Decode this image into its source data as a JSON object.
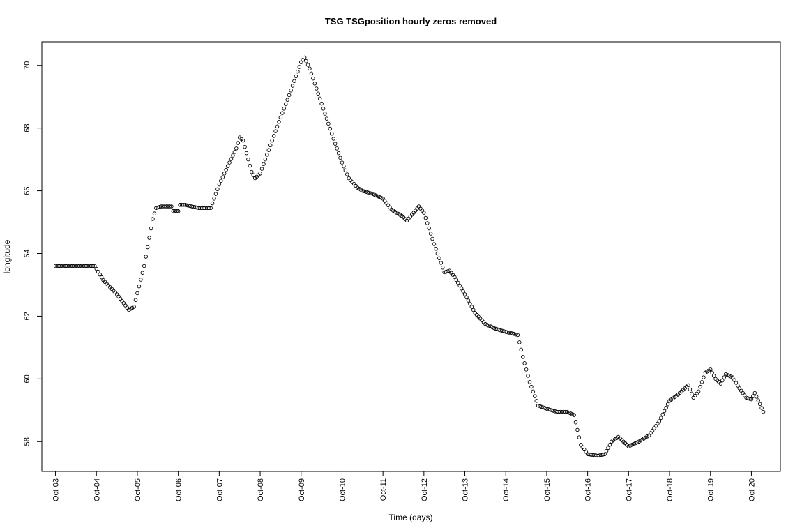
{
  "chart_data": {
    "type": "scatter",
    "title": "TSG TSGposition hourly zeros removed",
    "xlabel": "Time (days)",
    "ylabel": "longitude",
    "xlim": [
      "2023-10-02T16:00",
      "2023-10-20T17:00"
    ],
    "ylim": [
      57.05,
      70.75
    ],
    "x_ticks": [
      {
        "value": "2023-10-03",
        "label": "Oct-03"
      },
      {
        "value": "2023-10-04",
        "label": "Oct-04"
      },
      {
        "value": "2023-10-05",
        "label": "Oct-05"
      },
      {
        "value": "2023-10-06",
        "label": "Oct-06"
      },
      {
        "value": "2023-10-07",
        "label": "Oct-07"
      },
      {
        "value": "2023-10-08",
        "label": "Oct-08"
      },
      {
        "value": "2023-10-09",
        "label": "Oct-09"
      },
      {
        "value": "2023-10-10",
        "label": "Oct-10"
      },
      {
        "value": "2023-10-11",
        "label": "Oct-11"
      },
      {
        "value": "2023-10-12",
        "label": "Oct-12"
      },
      {
        "value": "2023-10-13",
        "label": "Oct-13"
      },
      {
        "value": "2023-10-14",
        "label": "Oct-14"
      },
      {
        "value": "2023-10-15",
        "label": "Oct-15"
      },
      {
        "value": "2023-10-16",
        "label": "Oct-16"
      },
      {
        "value": "2023-10-17",
        "label": "Oct-17"
      },
      {
        "value": "2023-10-18",
        "label": "Oct-18"
      },
      {
        "value": "2023-10-19",
        "label": "Oct-19"
      },
      {
        "value": "2023-10-20",
        "label": "Oct-20"
      }
    ],
    "y_ticks": [
      58,
      60,
      62,
      64,
      66,
      68,
      70
    ],
    "grid": false,
    "legend": "none",
    "marker": "open-circle",
    "marker_color": "#000000",
    "series": [
      {
        "points": [
          [
            "2023-10-03T00:00",
            63.6
          ],
          [
            "2023-10-03T12:00",
            63.6
          ],
          [
            "2023-10-03T23:00",
            63.6
          ],
          [
            "2023-10-04T04:00",
            63.15
          ],
          [
            "2023-10-04T12:00",
            62.7
          ],
          [
            "2023-10-04T19:00",
            62.2
          ],
          [
            "2023-10-04T22:00",
            62.3
          ],
          [
            "2023-10-05T04:00",
            63.6
          ],
          [
            "2023-10-05T09:00",
            65.1
          ],
          [
            "2023-10-05T11:00",
            65.45
          ],
          [
            "2023-10-05T14:00",
            65.5
          ],
          [
            "2023-10-05T20:00",
            65.5
          ],
          [
            "2023-10-05T21:00",
            65.35
          ],
          [
            "2023-10-06T00:00",
            65.35
          ],
          [
            "2023-10-06T01:00",
            65.55
          ],
          [
            "2023-10-06T04:00",
            65.55
          ],
          [
            "2023-10-06T12:00",
            65.45
          ],
          [
            "2023-10-06T19:00",
            65.45
          ],
          [
            "2023-10-07T00:00",
            66.2
          ],
          [
            "2023-10-07T06:00",
            66.9
          ],
          [
            "2023-10-07T10:00",
            67.35
          ],
          [
            "2023-10-07T12:00",
            67.7
          ],
          [
            "2023-10-07T14:00",
            67.6
          ],
          [
            "2023-10-07T19:00",
            66.6
          ],
          [
            "2023-10-07T21:00",
            66.4
          ],
          [
            "2023-10-08T00:00",
            66.55
          ],
          [
            "2023-10-08T05:00",
            67.3
          ],
          [
            "2023-10-08T11:00",
            68.2
          ],
          [
            "2023-10-08T16:00",
            68.9
          ],
          [
            "2023-10-08T20:00",
            69.5
          ],
          [
            "2023-10-09T00:00",
            70.1
          ],
          [
            "2023-10-09T02:00",
            70.25
          ],
          [
            "2023-10-09T05:00",
            69.9
          ],
          [
            "2023-10-09T10:00",
            69.1
          ],
          [
            "2023-10-09T15:00",
            68.3
          ],
          [
            "2023-10-09T20:00",
            67.5
          ],
          [
            "2023-10-10T00:00",
            66.9
          ],
          [
            "2023-10-10T04:00",
            66.4
          ],
          [
            "2023-10-10T09:00",
            66.1
          ],
          [
            "2023-10-10T12:00",
            66.0
          ],
          [
            "2023-10-10T18:00",
            65.9
          ],
          [
            "2023-10-11T00:00",
            65.75
          ],
          [
            "2023-10-11T05:00",
            65.4
          ],
          [
            "2023-10-11T08:00",
            65.3
          ],
          [
            "2023-10-11T11:00",
            65.2
          ],
          [
            "2023-10-11T14:00",
            65.05
          ],
          [
            "2023-10-11T18:00",
            65.3
          ],
          [
            "2023-10-11T21:00",
            65.5
          ],
          [
            "2023-10-12T00:00",
            65.3
          ],
          [
            "2023-10-12T06:00",
            64.3
          ],
          [
            "2023-10-12T12:00",
            63.4
          ],
          [
            "2023-10-12T15:00",
            63.45
          ],
          [
            "2023-10-12T18:00",
            63.25
          ],
          [
            "2023-10-13T00:00",
            62.7
          ],
          [
            "2023-10-13T06:00",
            62.1
          ],
          [
            "2023-10-13T12:00",
            61.75
          ],
          [
            "2023-10-13T18:00",
            61.6
          ],
          [
            "2023-10-14T00:00",
            61.5
          ],
          [
            "2023-10-14T04:00",
            61.45
          ],
          [
            "2023-10-14T07:00",
            61.4
          ],
          [
            "2023-10-14T10:00",
            60.7
          ],
          [
            "2023-10-14T14:00",
            59.9
          ],
          [
            "2023-10-14T19:00",
            59.15
          ],
          [
            "2023-10-15T00:00",
            59.05
          ],
          [
            "2023-10-15T06:00",
            58.95
          ],
          [
            "2023-10-15T12:00",
            58.95
          ],
          [
            "2023-10-15T16:00",
            58.85
          ],
          [
            "2023-10-15T20:00",
            57.9
          ],
          [
            "2023-10-16T00:00",
            57.6
          ],
          [
            "2023-10-16T06:00",
            57.55
          ],
          [
            "2023-10-16T10:00",
            57.6
          ],
          [
            "2023-10-16T14:00",
            58.0
          ],
          [
            "2023-10-16T18:00",
            58.15
          ],
          [
            "2023-10-17T00:00",
            57.85
          ],
          [
            "2023-10-17T06:00",
            58.0
          ],
          [
            "2023-10-17T12:00",
            58.2
          ],
          [
            "2023-10-17T18:00",
            58.65
          ],
          [
            "2023-10-18T00:00",
            59.3
          ],
          [
            "2023-10-18T05:00",
            59.5
          ],
          [
            "2023-10-18T08:00",
            59.65
          ],
          [
            "2023-10-18T11:00",
            59.8
          ],
          [
            "2023-10-18T14:00",
            59.4
          ],
          [
            "2023-10-18T17:00",
            59.6
          ],
          [
            "2023-10-18T21:00",
            60.2
          ],
          [
            "2023-10-19T00:00",
            60.3
          ],
          [
            "2023-10-19T03:00",
            60.0
          ],
          [
            "2023-10-19T06:00",
            59.85
          ],
          [
            "2023-10-19T09:00",
            60.15
          ],
          [
            "2023-10-19T13:00",
            60.05
          ],
          [
            "2023-10-19T17:00",
            59.7
          ],
          [
            "2023-10-19T21:00",
            59.4
          ],
          [
            "2023-10-20T00:00",
            59.35
          ],
          [
            "2023-10-20T02:00",
            59.55
          ],
          [
            "2023-10-20T05:00",
            59.2
          ],
          [
            "2023-10-20T07:00",
            58.95
          ]
        ]
      }
    ]
  }
}
